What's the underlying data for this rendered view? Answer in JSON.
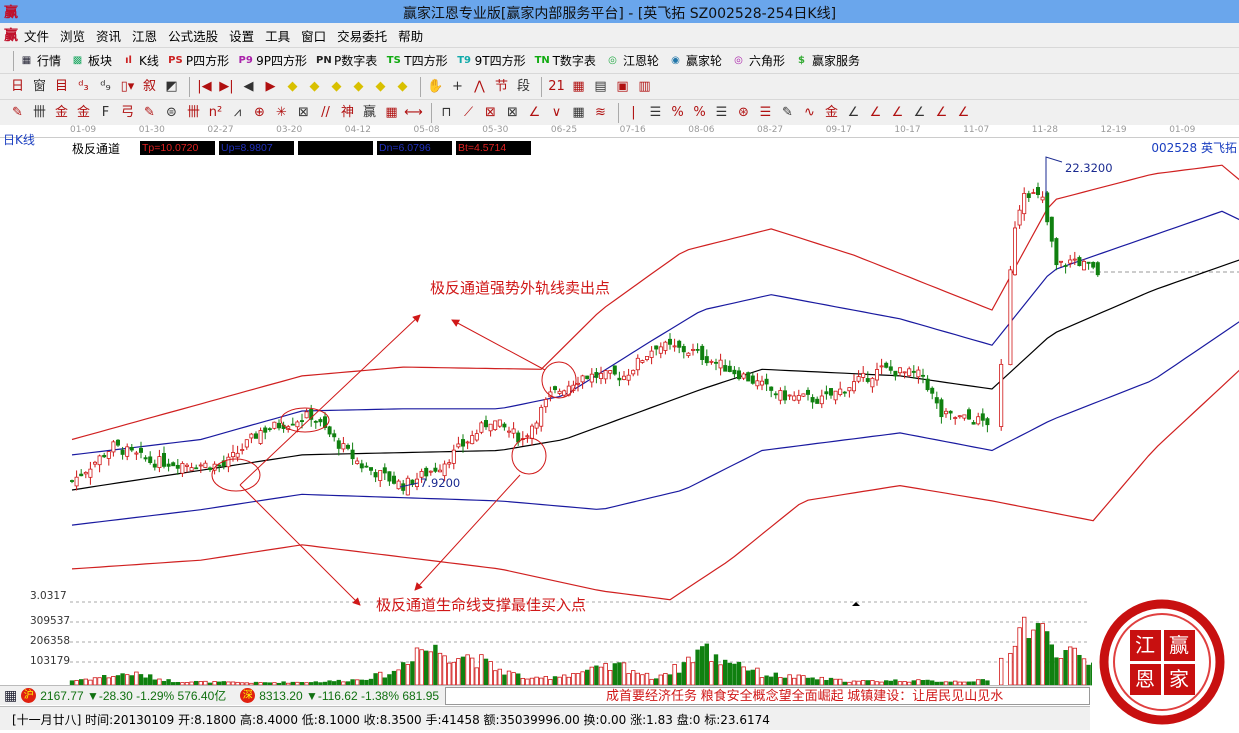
{
  "app": {
    "logo_char": "赢",
    "title": "赢家江恩专业版[赢家内部服务平台] - [英飞拓  SZ002528-254日K线]"
  },
  "menu": [
    "文件",
    "浏览",
    "资讯",
    "江恩",
    "公式选股",
    "设置",
    "工具",
    "窗口",
    "交易委托",
    "帮助"
  ],
  "toolbar1": [
    {
      "icon": "grid-table-icon",
      "glyph": "▦",
      "color": "#223",
      "label": "行情"
    },
    {
      "icon": "blocks-icon",
      "glyph": "▩",
      "color": "#2a6",
      "label": "板块"
    },
    {
      "icon": "candlestick-icon",
      "glyph": "ıl",
      "color": "#c22",
      "label": "K线"
    },
    {
      "icon": "ps-icon",
      "glyph": "PS",
      "color": "#c22",
      "label": "P四方形"
    },
    {
      "icon": "p9-icon",
      "glyph": "P9",
      "color": "#a2a",
      "label": "9P四方形"
    },
    {
      "icon": "pn-icon",
      "glyph": "PN",
      "color": "#222",
      "label": "P数字表"
    },
    {
      "icon": "ts-icon",
      "glyph": "TS",
      "color": "#1a1",
      "label": "T四方形"
    },
    {
      "icon": "t9-icon",
      "glyph": "T9",
      "color": "#1aa",
      "label": "9T四方形"
    },
    {
      "icon": "tn-icon",
      "glyph": "TN",
      "color": "#1a1",
      "label": "T数字表"
    },
    {
      "icon": "gann-wheel-icon",
      "glyph": "◎",
      "color": "#2a4",
      "label": "江恩轮"
    },
    {
      "icon": "big-wheel-icon",
      "glyph": "◉",
      "color": "#27a",
      "label": "赢家轮"
    },
    {
      "icon": "hexagon-icon",
      "glyph": "◎",
      "color": "#a2a",
      "label": "六角形"
    },
    {
      "icon": "dollar-icon",
      "glyph": "$",
      "color": "#3a3",
      "label": "赢家服务"
    }
  ],
  "toolbar2": [
    "日▾",
    "窗",
    "目",
    "ᵈ₃",
    "ᵈ₉",
    "▯▾",
    "叙",
    "◩",
    "|◀",
    "▶|",
    "◀",
    "▶",
    "◆",
    "◆",
    "◆",
    "◆",
    "◆",
    "◆",
    "✋",
    "+",
    "⋀",
    "节",
    "段",
    "21",
    "▦",
    "▤",
    "▣",
    "▥"
  ],
  "toolbar3": [
    "✎",
    "卌",
    "金",
    "金",
    "F",
    "弓",
    "✎",
    "⊜",
    "卌",
    "n²",
    "⩘",
    "⊕",
    "✳",
    "⊠",
    "//",
    "神",
    "赢",
    "▦",
    "⟷",
    "⊓",
    "⟋",
    "⊠",
    "⊠",
    "∠",
    "∨",
    "▦",
    "≋",
    "|",
    "☰",
    "%",
    "%",
    "☰",
    "⊛",
    "☰",
    "✎",
    "∿",
    "金",
    "∠",
    "∠",
    "∠",
    "∠",
    "∠",
    "∠"
  ],
  "dates": [
    "01-09",
    "01-30",
    "02-27",
    "03-20",
    "04-12",
    "05-08",
    "05-30",
    "06-25",
    "07-16",
    "08-06",
    "08-27",
    "09-17",
    "10-17",
    "11-07",
    "11-28",
    "12-19",
    "01-09"
  ],
  "chart_header": {
    "period": "日K线",
    "indicator": "极反通道",
    "tp": "Tp=10.0720",
    "up": "Up=8.9807",
    "blank": "",
    "dn": "Dn=6.0796",
    "bt": "Bt=4.5714",
    "stock": "002528  英飞拓"
  },
  "annotations": {
    "sell": "极反通道强势外轨线卖出点",
    "buy": "极反通道生命线支撑最佳买入点",
    "high": "22.3200",
    "low": "7.9200"
  },
  "volume_axis": [
    "3.0317",
    "309537",
    "206358",
    "103179"
  ],
  "colors": {
    "up": "#d01818",
    "down": "#108010",
    "top": "#d02020",
    "upper": "#1a1aa0",
    "mid": "#000000"
  },
  "chart_data": {
    "type": "candlestick",
    "bars": 254,
    "channels": {
      "top": [
        [
          0,
          9.9
        ],
        [
          50,
          12.8
        ],
        [
          72,
          13.2
        ],
        [
          102,
          13.1
        ],
        [
          115,
          15.8
        ],
        [
          133,
          18.5
        ],
        [
          152,
          19.5
        ],
        [
          170,
          18.3
        ],
        [
          200,
          15.8
        ],
        [
          213,
          20.8
        ],
        [
          235,
          22.0
        ],
        [
          250,
          22.4
        ],
        [
          254,
          21.7
        ]
      ],
      "upper": [
        [
          0,
          9.2
        ],
        [
          28,
          9.9
        ],
        [
          50,
          11.2
        ],
        [
          72,
          11.3
        ],
        [
          93,
          11.3
        ],
        [
          107,
          11.9
        ],
        [
          126,
          14.4
        ],
        [
          137,
          15.8
        ],
        [
          152,
          16.5
        ],
        [
          180,
          15.4
        ],
        [
          200,
          14.2
        ],
        [
          213,
          17.6
        ],
        [
          235,
          19.2
        ],
        [
          250,
          20.3
        ],
        [
          254,
          19.9
        ]
      ],
      "mid": [
        [
          0,
          7.6
        ],
        [
          50,
          9.2
        ],
        [
          93,
          9.4
        ],
        [
          107,
          9.9
        ],
        [
          137,
          12.2
        ],
        [
          150,
          13.1
        ],
        [
          180,
          12.8
        ],
        [
          200,
          12.2
        ],
        [
          213,
          14.7
        ],
        [
          235,
          16.7
        ],
        [
          254,
          18.1
        ]
      ],
      "lower": [
        [
          0,
          6.0
        ],
        [
          28,
          6.7
        ],
        [
          50,
          7.4
        ],
        [
          93,
          7.1
        ],
        [
          115,
          6.7
        ],
        [
          133,
          7.6
        ],
        [
          150,
          9.4
        ],
        [
          180,
          10.2
        ],
        [
          200,
          9.4
        ],
        [
          213,
          10.8
        ],
        [
          235,
          12.6
        ],
        [
          254,
          15.3
        ]
      ],
      "bottom": [
        [
          0,
          4.0
        ],
        [
          28,
          4.4
        ],
        [
          50,
          5.1
        ],
        [
          93,
          4.0
        ],
        [
          115,
          3.0
        ],
        [
          130,
          2.6
        ],
        [
          143,
          4.4
        ],
        [
          159,
          7.1
        ],
        [
          180,
          7.8
        ],
        [
          200,
          7.1
        ],
        [
          222,
          6.2
        ],
        [
          235,
          9.4
        ],
        [
          254,
          13.1
        ]
      ]
    },
    "close_path": [
      [
        0,
        8.0
      ],
      [
        9,
        9.6
      ],
      [
        17,
        8.9
      ],
      [
        33,
        8.7
      ],
      [
        41,
        10.3
      ],
      [
        52,
        11.0
      ],
      [
        57,
        9.9
      ],
      [
        63,
        8.7
      ],
      [
        72,
        7.8
      ],
      [
        80,
        8.7
      ],
      [
        91,
        10.8
      ],
      [
        98,
        9.9
      ],
      [
        104,
        11.9
      ],
      [
        111,
        12.8
      ],
      [
        120,
        12.8
      ],
      [
        127,
        14.2
      ],
      [
        135,
        13.9
      ],
      [
        146,
        12.8
      ],
      [
        154,
        11.9
      ],
      [
        163,
        11.7
      ],
      [
        176,
        13.1
      ],
      [
        185,
        12.8
      ],
      [
        189,
        11.0
      ],
      [
        199,
        10.7
      ],
      [
        202,
        13.1
      ],
      [
        205,
        19.7
      ],
      [
        207,
        21.3
      ],
      [
        211,
        20.8
      ],
      [
        214,
        17.8
      ],
      [
        218,
        18.1
      ],
      [
        223,
        17.5
      ]
    ],
    "volume_path": [
      [
        0,
        25000
      ],
      [
        13,
        65000
      ],
      [
        22,
        20000
      ],
      [
        40,
        12000
      ],
      [
        55,
        18000
      ],
      [
        62,
        30000
      ],
      [
        70,
        70000
      ],
      [
        75,
        210000
      ],
      [
        80,
        195000
      ],
      [
        87,
        160000
      ],
      [
        92,
        95000
      ],
      [
        100,
        30000
      ],
      [
        110,
        70000
      ],
      [
        120,
        110000
      ],
      [
        126,
        40000
      ],
      [
        132,
        100000
      ],
      [
        137,
        215000
      ],
      [
        140,
        150000
      ],
      [
        144,
        140000
      ],
      [
        150,
        60000
      ],
      [
        160,
        40000
      ],
      [
        170,
        20000
      ],
      [
        180,
        25000
      ],
      [
        190,
        20000
      ],
      [
        200,
        25000
      ],
      [
        205,
        300000
      ],
      [
        207,
        350000
      ],
      [
        212,
        280000
      ],
      [
        216,
        180000
      ],
      [
        220,
        140000
      ],
      [
        223,
        110000
      ]
    ],
    "high_mark": 22.32,
    "low_mark": 7.92
  },
  "index_bar": {
    "sh_badge": "沪",
    "sh": "2167.77 ▼-28.30 -1.29% 576.40亿",
    "sz_badge": "深",
    "sz": "8313.20 ▼-116.62 -1.38% 681.95",
    "ticker": "成首要经济任务  粮食安全概念望全面崛起        城镇建设：让居民见山见水"
  },
  "status": "[十一月廿八] 时间:20130109 开:8.1800 高:8.4000 低:8.1000 收:8.3500 手:41458 额:35039996.00 换:0.00 涨:1.83 盘:0 标:23.6174",
  "logo": {
    "chars": [
      "江",
      "赢",
      "恩",
      "家"
    ]
  }
}
